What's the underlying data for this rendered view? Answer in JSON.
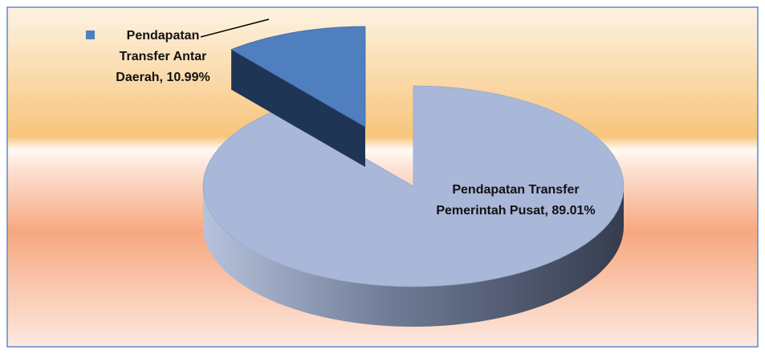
{
  "chart_data": {
    "type": "pie",
    "values": [
      89.01,
      10.99
    ],
    "value_labels": [
      "Pendapatan Transfer Pemerintah Pusat, 89.01%",
      "Pendapatan Transfer Antar Daerah, 10.99%"
    ],
    "colors": [
      "#a9b7d9",
      "#4f7fbf"
    ]
  }
}
